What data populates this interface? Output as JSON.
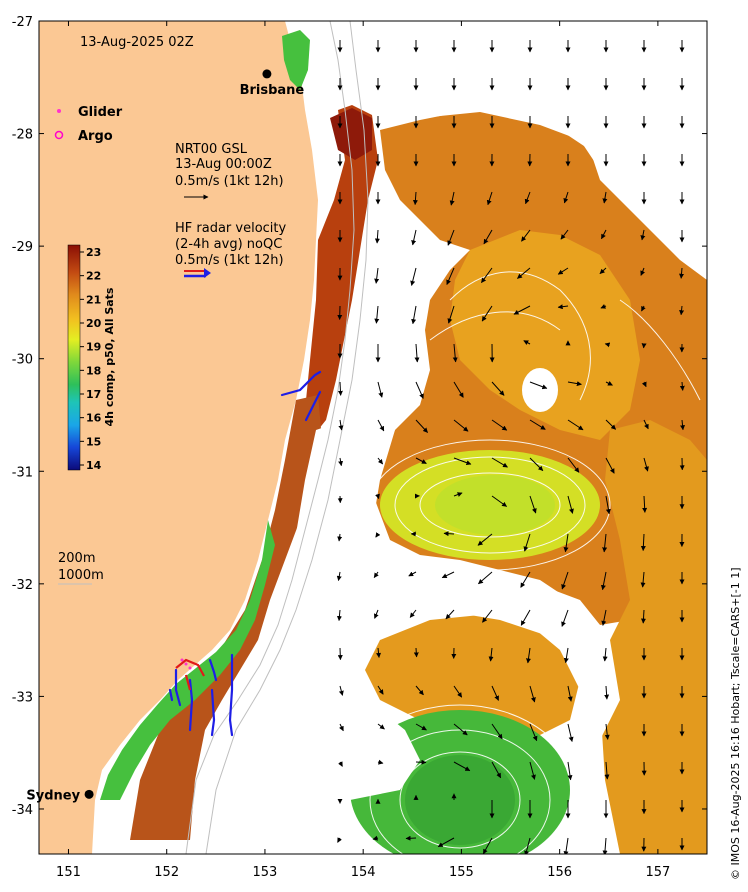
{
  "map": {
    "timestamp": "13-Aug-2025 02Z",
    "lon_ticks": [
      "151",
      "152",
      "153",
      "154",
      "155",
      "156",
      "157"
    ],
    "lat_ticks": [
      "-27",
      "-28",
      "-29",
      "-30",
      "-31",
      "-32",
      "-33",
      "-34"
    ],
    "lon_range": [
      150.7,
      157.5
    ],
    "lat_range": [
      -34.4,
      -27.0
    ],
    "cities": [
      {
        "name": "Brisbane",
        "lon": 153.02,
        "lat": -27.47
      },
      {
        "name": "Sydney",
        "lon": 151.21,
        "lat": -33.87
      }
    ],
    "legend": {
      "glider": "Glider",
      "argo": "Argo",
      "glider_color": "#ff33cc",
      "argo_color": "#ff00cc"
    },
    "current_key": {
      "line1": "NRT00 GSL",
      "line2": "13-Aug 00:00Z",
      "line3": "0.5m/s (1kt 12h)"
    },
    "radar_key": {
      "line1": "HF radar velocity",
      "line2": "(2-4h avg) noQC",
      "line3": "0.5m/s (1kt 12h)"
    },
    "colorbar": {
      "label": "4h comp, p50, All Sats",
      "ticks": [
        "23",
        "22",
        "21",
        "20",
        "19",
        "18",
        "17",
        "16",
        "15",
        "14"
      ]
    },
    "isobaths": {
      "line1": "200m",
      "line2": "1000m"
    },
    "credit": "© IMOS 16-Aug-2025 16:16 Hobart; Tscale=CARS+[-1 1]",
    "colors": {
      "land": "#fbc894",
      "warm": "#d97a1a",
      "hot": "#9a1a0a",
      "mid": "#e9a21e",
      "yellow": "#d8e021",
      "green": "#3fb83a",
      "radar": "#1e1ee6",
      "radar_alt": "#e01a1a"
    }
  }
}
